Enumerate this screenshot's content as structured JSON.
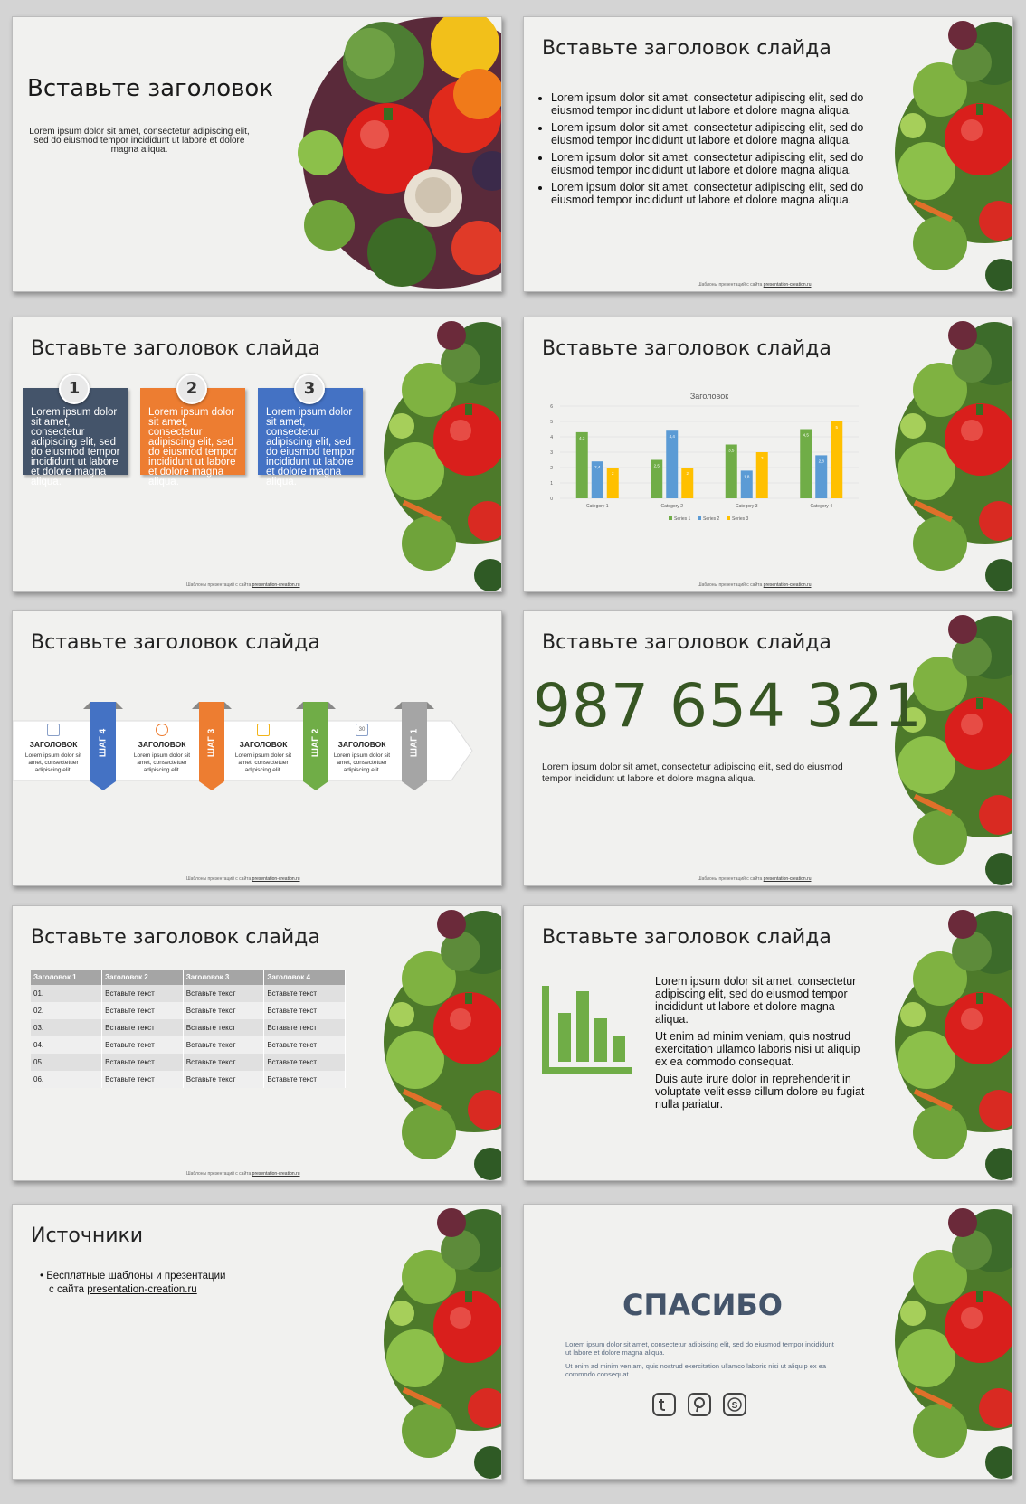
{
  "footer": {
    "prefix": "Шаблоны презентаций с сайта ",
    "link": "presentation-creation.ru"
  },
  "slide1": {
    "title": "Вставьте заголовок",
    "subtitle": "Lorem ipsum dolor sit amet, consectetur adipiscing elit, sed do eiusmod tempor incididunt ut labore et dolore magna aliqua."
  },
  "slide2": {
    "title": "Вставьте заголовок слайда",
    "bullets": [
      "Lorem ipsum dolor sit amet, consectetur adipiscing elit, sed do eiusmod tempor incididunt ut labore et dolore magna aliqua.",
      "Lorem ipsum dolor sit amet, consectetur adipiscing elit, sed do eiusmod tempor incididunt ut labore et dolore magna aliqua.",
      "Lorem ipsum dolor sit amet, consectetur adipiscing elit, sed do eiusmod tempor incididunt ut labore et dolore magna aliqua.",
      "Lorem ipsum dolor sit amet, consectetur adipiscing elit, sed do eiusmod tempor incididunt ut labore et dolore magna aliqua."
    ]
  },
  "slide3": {
    "title": "Вставьте заголовок слайда",
    "boxes": [
      {
        "num": "1",
        "text": "Lorem ipsum dolor sit amet, consectetur adipiscing elit, sed do eiusmod tempor incididunt ut labore et dolore magna aliqua.",
        "color": "#44546a"
      },
      {
        "num": "2",
        "text": "Lorem ipsum dolor sit amet, consectetur adipiscing elit, sed do eiusmod tempor incididunt ut labore et dolore magna aliqua.",
        "color": "#ed7d31"
      },
      {
        "num": "3",
        "text": "Lorem ipsum dolor sit amet, consectetur adipiscing elit, sed do eiusmod tempor incididunt ut labore et dolore magna aliqua.",
        "color": "#4472c4"
      }
    ]
  },
  "slide4": {
    "title": "Вставьте заголовок слайда"
  },
  "chart_data": {
    "type": "bar",
    "title": "Заголовок",
    "categories": [
      "Category 1",
      "Category 2",
      "Category 3",
      "Category 4"
    ],
    "series": [
      {
        "name": "Series 1",
        "values": [
          4.3,
          2.5,
          3.5,
          4.5
        ],
        "color": "#70ad47"
      },
      {
        "name": "Series 2",
        "values": [
          2.4,
          4.4,
          1.8,
          2.8
        ],
        "color": "#5b9bd5"
      },
      {
        "name": "Series 3",
        "values": [
          2,
          2,
          3,
          5
        ],
        "color": "#ffc000"
      }
    ],
    "ylim": [
      0,
      6
    ],
    "yticks": [
      "0",
      "1",
      "2",
      "3",
      "4",
      "5",
      "6"
    ],
    "grid": true,
    "legend": "bottom"
  },
  "slide5": {
    "title": "Вставьте заголовок слайда",
    "steps": [
      {
        "label": "ШАГ 4",
        "caption": "ЗАГОЛОВОК",
        "desc": "Lorem ipsum dolor sit amet, consectetuer adipiscing elit.",
        "color": "#4472c4",
        "icon": "document-icon"
      },
      {
        "label": "ШАГ 3",
        "caption": "ЗАГОЛОВОК",
        "desc": "Lorem ipsum dolor sit amet, consectetuer adipiscing elit.",
        "color": "#ed7d31",
        "icon": "cloud-icon"
      },
      {
        "label": "ШАГ 2",
        "caption": "ЗАГОЛОВОК",
        "desc": "Lorem ipsum dolor sit amet, consectetuer adipiscing elit.",
        "color": "#70ad47",
        "icon": "binders-icon"
      },
      {
        "label": "ШАГ 1",
        "caption": "ЗАГОЛОВОК",
        "desc": "Lorem ipsum dolor sit amet, consectetuer adipiscing elit.",
        "color": "#a5a5a5",
        "icon": "calendar-icon",
        "icon_text": "30"
      }
    ]
  },
  "slide6": {
    "title": "Вставьте заголовок слайда",
    "number": "987 654 321",
    "text": "Lorem ipsum dolor sit amet, consectetur adipiscing elit, sed do eiusmod tempor incididunt ut labore et dolore magna aliqua."
  },
  "slide7": {
    "title": "Вставьте заголовок слайда",
    "headers": [
      "Заголовок 1",
      "Заголовок 2",
      "Заголовок 3",
      "Заголовок 4"
    ],
    "rows": [
      [
        "01.",
        "Вставьте текст",
        "Вставьте текст",
        "Вставьте текст"
      ],
      [
        "02.",
        "Вставьте текст",
        "Вставьте текст",
        "Вставьте текст"
      ],
      [
        "03.",
        "Вставьте текст",
        "Вставьте текст",
        "Вставьте текст"
      ],
      [
        "04.",
        "Вставьте текст",
        "Вставьте текст",
        "Вставьте текст"
      ],
      [
        "05.",
        "Вставьте текст",
        "Вставьте текст",
        "Вставьте текст"
      ],
      [
        "06.",
        "Вставьте текст",
        "Вставьте текст",
        "Вставьте текст"
      ]
    ]
  },
  "slide8": {
    "title": "Вставьте заголовок слайда",
    "icon": "bar-chart-icon",
    "paragraphs": [
      "Lorem ipsum dolor sit amet, consectetur adipiscing elit, sed do eiusmod tempor incididunt ut labore et dolore magna aliqua.",
      "Ut enim ad minim veniam, quis nostrud exercitation ullamco laboris nisi ut aliquip ex ea commodo consequat.",
      "Duis aute irure dolor in reprehenderit in voluptate velit esse cillum dolore eu fugiat nulla pariatur."
    ]
  },
  "slide9": {
    "title": "Источники",
    "line1": "Бесплатные шаблоны и презентации",
    "line2_prefix": "с сайта ",
    "link": "presentation-creation.ru"
  },
  "slide10": {
    "title": "СПАСИБО",
    "text1": "Lorem ipsum dolor sit amet, consectetur adipiscing elit, sed do eiusmod tempor incididunt ut labore et dolore magna aliqua.",
    "text2": "Ut enim ad minim veniam, quis nostrud exercitation ullamco laboris nisi ut aliquip ex ea commodo consequat.",
    "social": [
      "twitter-icon",
      "pinterest-icon",
      "skype-icon"
    ]
  }
}
